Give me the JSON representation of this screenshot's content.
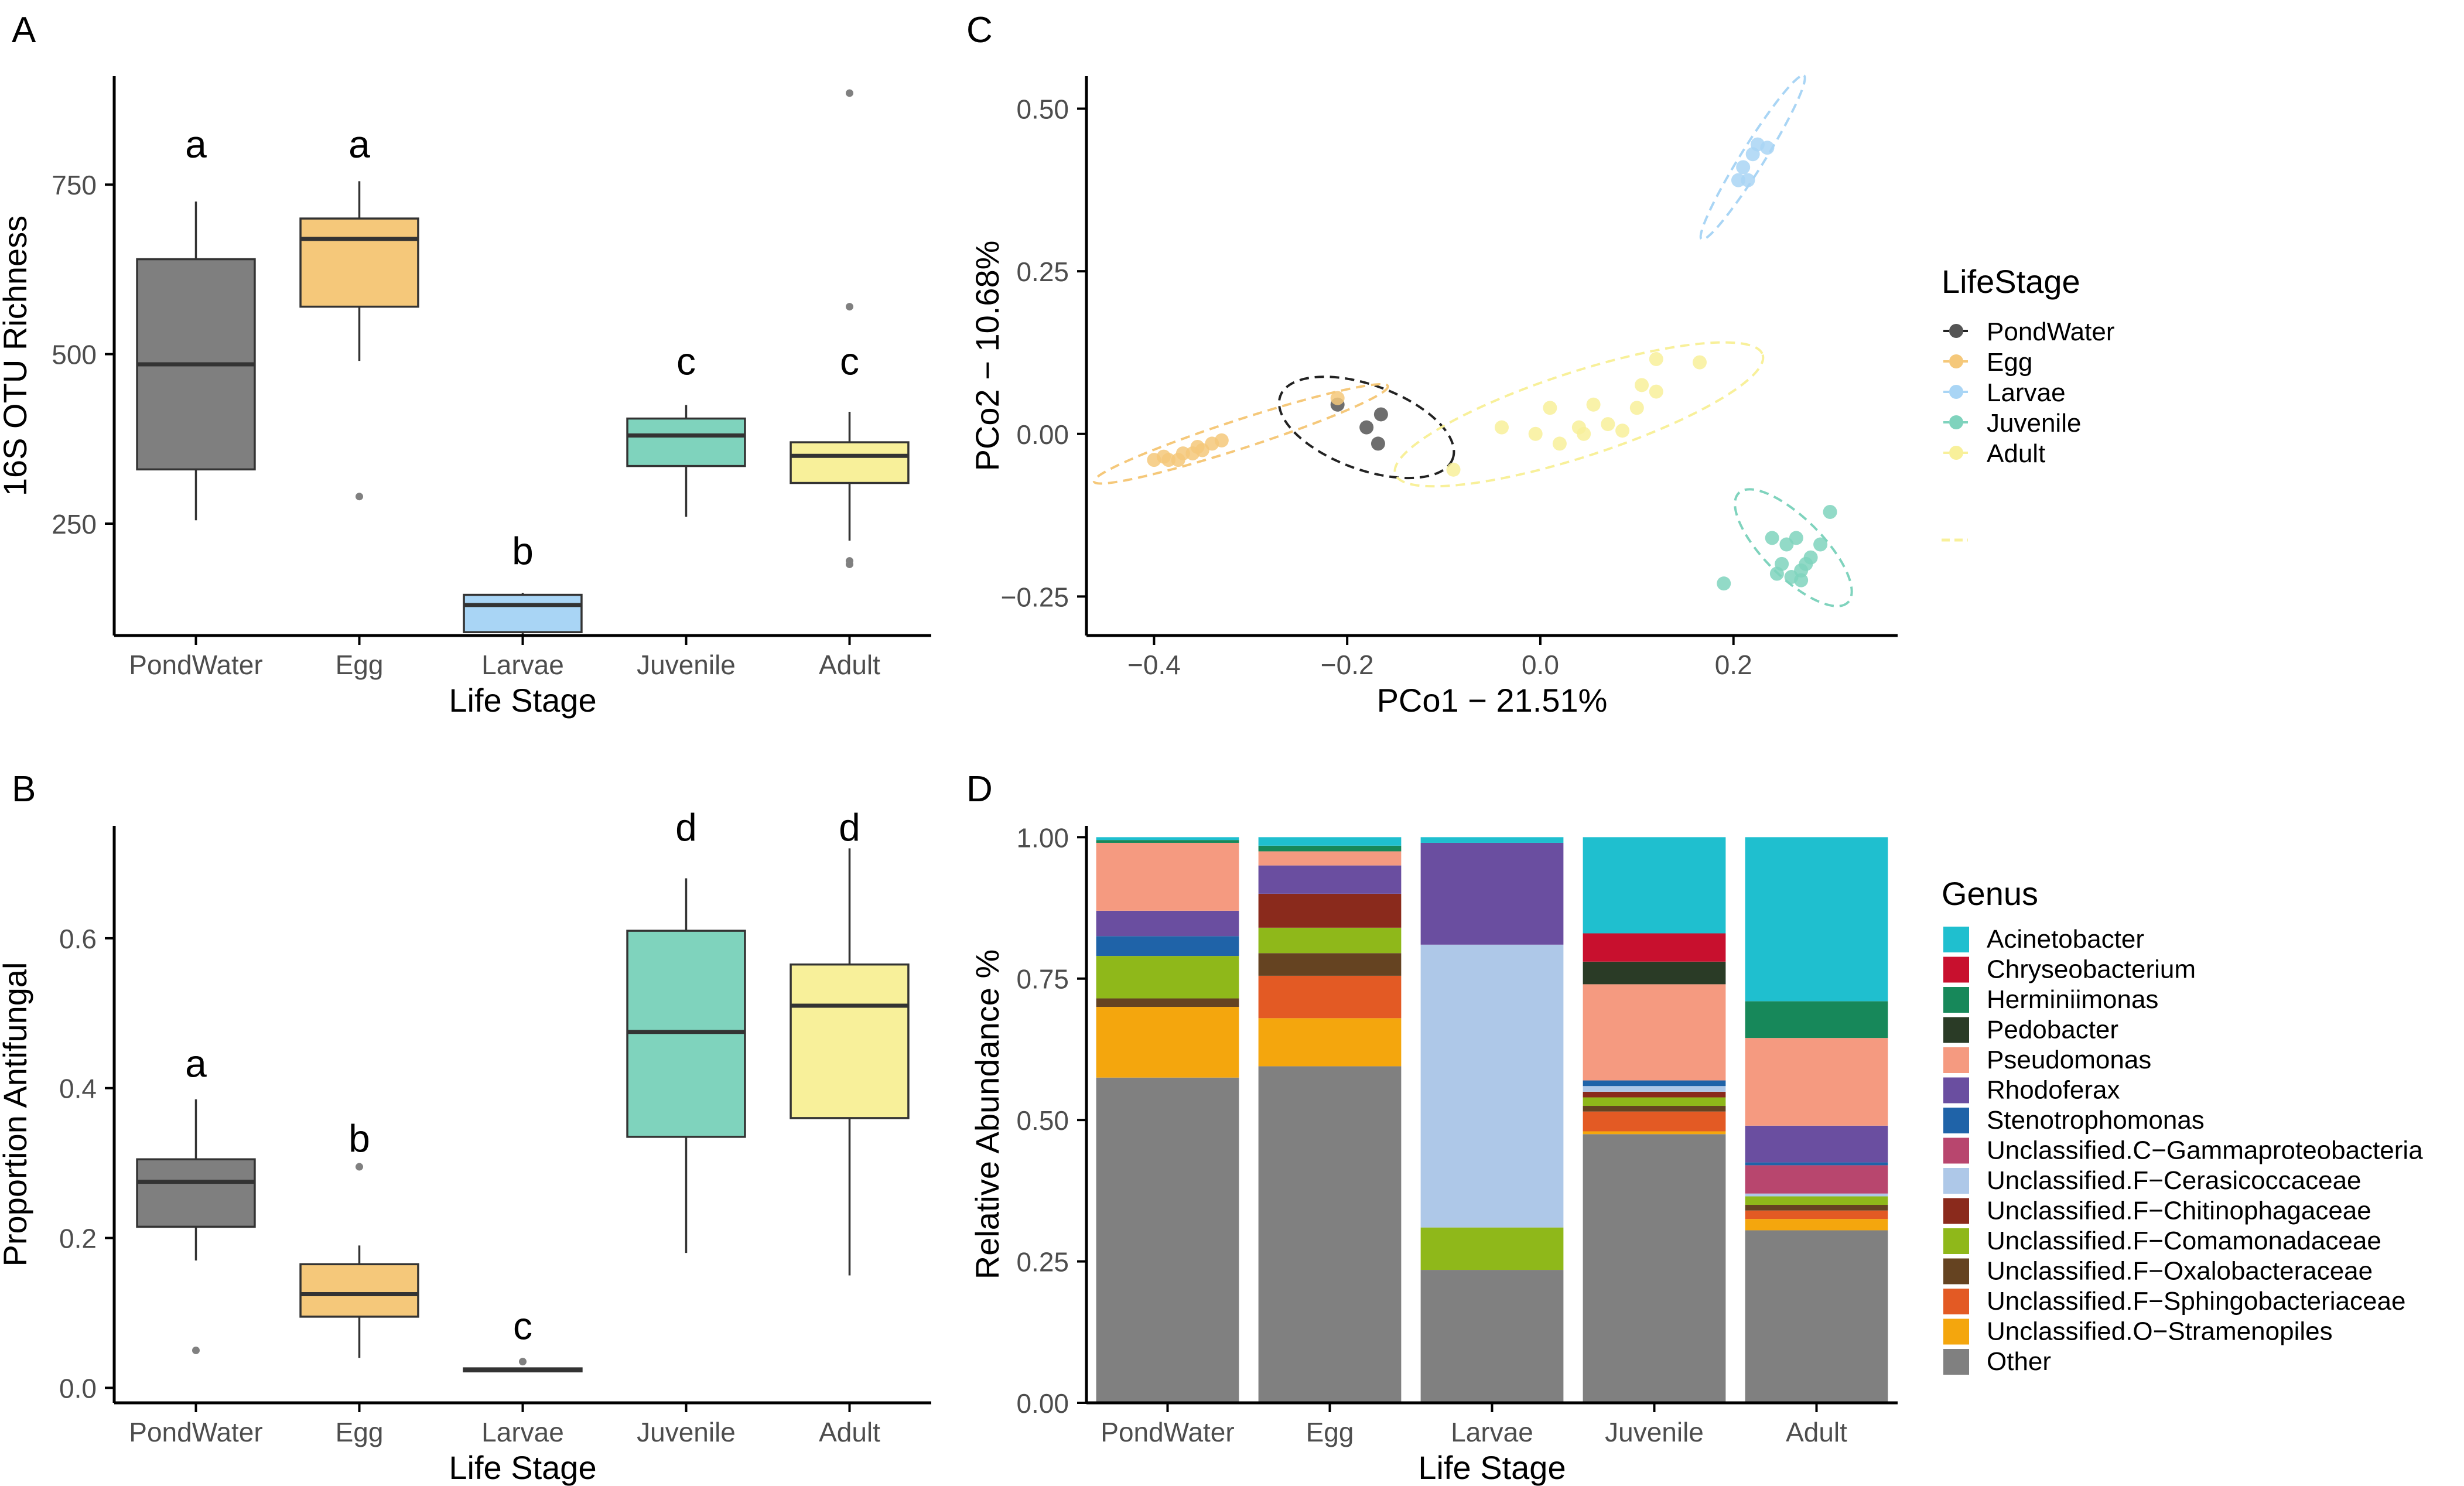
{
  "colors": {
    "PondWater": "#7f7f7f",
    "Egg": "#f5c87a",
    "Larvae": "#a9d5f5",
    "Juvenile": "#7fd3bd",
    "Adult": "#f8f09a",
    "axis": "#000000",
    "outlier": "#808080"
  },
  "chart_data": [
    {
      "id": "A",
      "panel_label": "A",
      "type": "box",
      "xlabel": "Life Stage",
      "ylabel": "16S OTU Richness",
      "categories": [
        "PondWater",
        "Egg",
        "Larvae",
        "Juvenile",
        "Adult"
      ],
      "yticks": [
        250,
        500,
        750
      ],
      "ytick_labels": [
        "250",
        "500",
        "750"
      ],
      "ylim": [
        85,
        910
      ],
      "boxes": [
        {
          "group": "PondWater",
          "min": 255,
          "q1": 330,
          "median": 485,
          "q3": 640,
          "max": 725,
          "outliers": [],
          "letter": "a",
          "letter_y": 790
        },
        {
          "group": "Egg",
          "min": 490,
          "q1": 570,
          "median": 670,
          "q3": 700,
          "max": 755,
          "outliers": [
            290
          ],
          "letter": "a",
          "letter_y": 790
        },
        {
          "group": "Larvae",
          "min": 85,
          "q1": 90,
          "median": 130,
          "q3": 145,
          "max": 148,
          "outliers": [],
          "letter": "b",
          "letter_y": 190
        },
        {
          "group": "Juvenile",
          "min": 260,
          "q1": 335,
          "median": 380,
          "q3": 405,
          "max": 425,
          "outliers": [],
          "letter": "c",
          "letter_y": 470
        },
        {
          "group": "Adult",
          "min": 225,
          "q1": 310,
          "median": 350,
          "q3": 370,
          "max": 415,
          "outliers": [
            885,
            570,
            195,
            190
          ],
          "letter": "c",
          "letter_y": 470
        }
      ]
    },
    {
      "id": "B",
      "panel_label": "B",
      "type": "box",
      "xlabel": "Life Stage",
      "ylabel": "Proportion Antifungal",
      "categories": [
        "PondWater",
        "Egg",
        "Larvae",
        "Juvenile",
        "Adult"
      ],
      "yticks": [
        0.0,
        0.2,
        0.4,
        0.6
      ],
      "ytick_labels": [
        "0.0",
        "0.2",
        "0.4",
        "0.6"
      ],
      "ylim": [
        -0.02,
        0.75
      ],
      "boxes": [
        {
          "group": "PondWater",
          "min": 0.17,
          "q1": 0.215,
          "median": 0.275,
          "q3": 0.305,
          "max": 0.385,
          "outliers": [
            0.05
          ],
          "letter": "a",
          "letter_y": 0.415
        },
        {
          "group": "Egg",
          "min": 0.04,
          "q1": 0.095,
          "median": 0.125,
          "q3": 0.165,
          "max": 0.19,
          "outliers": [
            0.295
          ],
          "letter": "b",
          "letter_y": 0.315
        },
        {
          "group": "Larvae",
          "min": 0.021,
          "q1": 0.022,
          "median": 0.024,
          "q3": 0.026,
          "max": 0.027,
          "outliers": [
            0.035
          ],
          "letter": "c",
          "letter_y": 0.065
        },
        {
          "group": "Juvenile",
          "min": 0.18,
          "q1": 0.335,
          "median": 0.475,
          "q3": 0.61,
          "max": 0.68,
          "outliers": [],
          "letter": "d",
          "letter_y": 0.73
        },
        {
          "group": "Adult",
          "min": 0.15,
          "q1": 0.36,
          "median": 0.51,
          "q3": 0.565,
          "max": 0.72,
          "outliers": [],
          "letter": "d",
          "letter_y": 0.73
        }
      ]
    },
    {
      "id": "C",
      "panel_label": "C",
      "type": "scatter",
      "xlabel": "PCo1 − 21.51%",
      "ylabel": "PCo2 − 10.68%",
      "xticks": [
        -0.4,
        -0.2,
        0.0,
        0.2
      ],
      "xtick_labels": [
        "−0.4",
        "−0.2",
        "0.0",
        "0.2"
      ],
      "yticks": [
        -0.25,
        0.0,
        0.25,
        0.5
      ],
      "ytick_labels": [
        "−0.25",
        "0.00",
        "0.25",
        "0.50"
      ],
      "xlim": [
        -0.47,
        0.37
      ],
      "ylim": [
        -0.31,
        0.55
      ],
      "legend_title": "LifeStage",
      "legend_position": "right",
      "series": [
        {
          "name": "PondWater",
          "points": [
            [
              -0.21,
              0.045
            ],
            [
              -0.18,
              0.01
            ],
            [
              -0.165,
              0.03
            ],
            [
              -0.168,
              -0.015
            ]
          ],
          "ellipse": {
            "cx": -0.18,
            "cy": 0.01,
            "rx": 0.095,
            "ry": 0.065,
            "angle": -20
          }
        },
        {
          "name": "Egg",
          "points": [
            [
              -0.21,
              0.055
            ],
            [
              -0.4,
              -0.04
            ],
            [
              -0.39,
              -0.035
            ],
            [
              -0.385,
              -0.04
            ],
            [
              -0.37,
              -0.03
            ],
            [
              -0.355,
              -0.02
            ],
            [
              -0.35,
              -0.025
            ],
            [
              -0.34,
              -0.015
            ],
            [
              -0.33,
              -0.01
            ],
            [
              -0.36,
              -0.03
            ],
            [
              -0.375,
              -0.04
            ]
          ],
          "ellipse": {
            "cx": -0.31,
            "cy": 0.0,
            "rx": 0.16,
            "ry": 0.022,
            "angle": 18
          }
        },
        {
          "name": "Larvae",
          "points": [
            [
              0.22,
              0.43
            ],
            [
              0.225,
              0.445
            ],
            [
              0.235,
              0.44
            ],
            [
              0.215,
              0.39
            ],
            [
              0.205,
              0.39
            ],
            [
              0.21,
              0.41
            ]
          ],
          "ellipse": {
            "cx": 0.22,
            "cy": 0.425,
            "rx": 0.1,
            "ry": 0.018,
            "angle": 58
          }
        },
        {
          "name": "Juvenile",
          "points": [
            [
              0.19,
              -0.23
            ],
            [
              0.24,
              -0.16
            ],
            [
              0.25,
              -0.2
            ],
            [
              0.26,
              -0.22
            ],
            [
              0.27,
              -0.21
            ],
            [
              0.28,
              -0.19
            ],
            [
              0.29,
              -0.17
            ],
            [
              0.3,
              -0.12
            ],
            [
              0.255,
              -0.17
            ],
            [
              0.265,
              -0.16
            ],
            [
              0.275,
              -0.2
            ],
            [
              0.245,
              -0.215
            ],
            [
              0.27,
              -0.225
            ]
          ],
          "ellipse": {
            "cx": 0.262,
            "cy": -0.175,
            "rx": 0.08,
            "ry": 0.045,
            "angle": -45
          }
        },
        {
          "name": "Adult",
          "points": [
            [
              -0.09,
              -0.055
            ],
            [
              -0.04,
              0.01
            ],
            [
              -0.005,
              0.0
            ],
            [
              0.02,
              -0.015
            ],
            [
              0.01,
              0.04
            ],
            [
              0.045,
              0.0
            ],
            [
              0.055,
              0.045
            ],
            [
              0.07,
              0.015
            ],
            [
              0.1,
              0.04
            ],
            [
              0.105,
              0.075
            ],
            [
              0.12,
              0.065
            ],
            [
              0.12,
              0.115
            ],
            [
              0.165,
              0.11
            ],
            [
              0.04,
              0.01
            ],
            [
              0.085,
              0.005
            ]
          ],
          "ellipse": {
            "cx": 0.04,
            "cy": 0.03,
            "rx": 0.2,
            "ry": 0.065,
            "angle": 18
          }
        }
      ]
    },
    {
      "id": "D",
      "panel_label": "D",
      "type": "stacked_bar",
      "xlabel": "Life Stage",
      "ylabel": "Relative Abundance %",
      "categories": [
        "PondWater",
        "Egg",
        "Larvae",
        "Juvenile",
        "Adult"
      ],
      "yticks": [
        0.0,
        0.25,
        0.5,
        0.75,
        1.0
      ],
      "ytick_labels": [
        "0.00",
        "0.25",
        "0.50",
        "0.75",
        "1.00"
      ],
      "ylim": [
        0,
        1.02
      ],
      "legend_title": "Genus",
      "legend_position": "right",
      "genera": [
        {
          "name": "Acinetobacter",
          "color": "#1fbfcf"
        },
        {
          "name": "Chryseobacterium",
          "color": "#c8102e"
        },
        {
          "name": "Herminiimonas",
          "color": "#17885a"
        },
        {
          "name": "Pedobacter",
          "color": "#2a3b26"
        },
        {
          "name": "Pseudomonas",
          "color": "#f59a80"
        },
        {
          "name": "Rhodoferax",
          "color": "#6a4ea0"
        },
        {
          "name": "Stenotrophomonas",
          "color": "#1f63a8"
        },
        {
          "name": "Unclassified.C−Gammaproteobacteria",
          "color": "#b8466e"
        },
        {
          "name": "Unclassified.F−Cerasicoccaceae",
          "color": "#aec8e8"
        },
        {
          "name": "Unclassified.F−Chitinophagaceae",
          "color": "#8a2a1c"
        },
        {
          "name": "Unclassified.F−Comamonadaceae",
          "color": "#8fb81a"
        },
        {
          "name": "Unclassified.F−Oxalobacteraceae",
          "color": "#654321"
        },
        {
          "name": "Unclassified.F−Sphingobacteriaceae",
          "color": "#e35a24"
        },
        {
          "name": "Unclassified.O−Stramenopiles",
          "color": "#f4a60d"
        },
        {
          "name": "Other",
          "color": "#808080"
        }
      ],
      "series": [
        {
          "name": "Other",
          "values": [
            0.575,
            0.595,
            0.235,
            0.475,
            0.305
          ]
        },
        {
          "name": "Unclassified.O−Stramenopiles",
          "values": [
            0.125,
            0.085,
            0.0,
            0.005,
            0.02
          ]
        },
        {
          "name": "Unclassified.F−Sphingobacteriaceae",
          "values": [
            0.0,
            0.075,
            0.0,
            0.035,
            0.015
          ]
        },
        {
          "name": "Unclassified.F−Oxalobacteraceae",
          "values": [
            0.015,
            0.04,
            0.0,
            0.01,
            0.01
          ]
        },
        {
          "name": "Unclassified.F−Comamonadaceae",
          "values": [
            0.075,
            0.045,
            0.075,
            0.015,
            0.015
          ]
        },
        {
          "name": "Unclassified.F−Chitinophagaceae",
          "values": [
            0.0,
            0.06,
            0.0,
            0.01,
            0.0
          ]
        },
        {
          "name": "Unclassified.F−Cerasicoccaceae",
          "values": [
            0.0,
            0.0,
            0.5,
            0.01,
            0.005
          ]
        },
        {
          "name": "Unclassified.C−Gammaproteobacteria",
          "values": [
            0.0,
            0.0,
            0.0,
            0.0,
            0.05
          ]
        },
        {
          "name": "Stenotrophomonas",
          "values": [
            0.035,
            0.0,
            0.0,
            0.01,
            0.005
          ]
        },
        {
          "name": "Rhodoferax",
          "values": [
            0.045,
            0.05,
            0.18,
            0.0,
            0.065
          ]
        },
        {
          "name": "Pseudomonas",
          "values": [
            0.12,
            0.025,
            0.0,
            0.17,
            0.155
          ]
        },
        {
          "name": "Pedobacter",
          "values": [
            0.0,
            0.0,
            0.0,
            0.04,
            0.0
          ]
        },
        {
          "name": "Herminiimonas",
          "values": [
            0.005,
            0.01,
            0.0,
            0.0,
            0.065
          ]
        },
        {
          "name": "Chryseobacterium",
          "values": [
            0.0,
            0.0,
            0.0,
            0.05,
            0.0
          ]
        },
        {
          "name": "Acinetobacter",
          "values": [
            0.005,
            0.015,
            0.01,
            0.17,
            0.29
          ]
        }
      ]
    }
  ]
}
